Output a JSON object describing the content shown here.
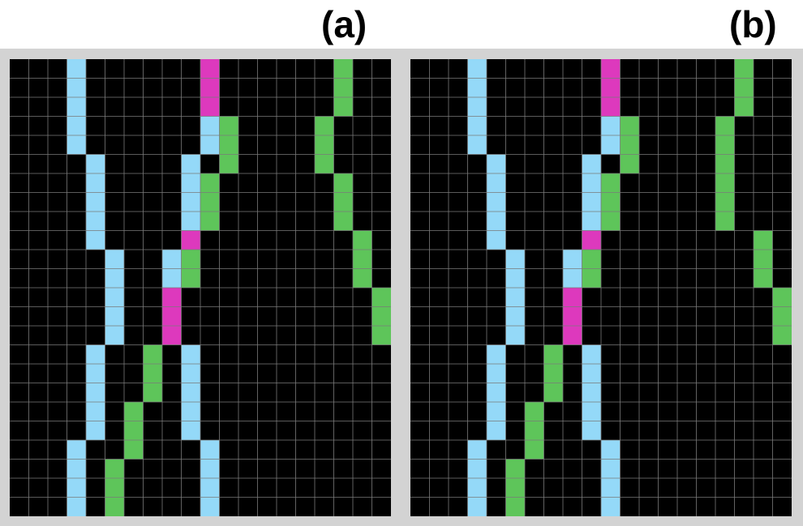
{
  "panels": [
    {
      "id": "a",
      "label": "(a)",
      "rows": 24,
      "cols": 20,
      "cells": [
        {
          "row": 0,
          "col": 3,
          "color": "blue"
        },
        {
          "row": 1,
          "col": 3,
          "color": "blue"
        },
        {
          "row": 2,
          "col": 3,
          "color": "blue"
        },
        {
          "row": 3,
          "col": 3,
          "color": "blue"
        },
        {
          "row": 4,
          "col": 3,
          "color": "blue"
        },
        {
          "row": 5,
          "col": 4,
          "color": "blue"
        },
        {
          "row": 6,
          "col": 4,
          "color": "blue"
        },
        {
          "row": 7,
          "col": 4,
          "color": "blue"
        },
        {
          "row": 8,
          "col": 4,
          "color": "blue"
        },
        {
          "row": 9,
          "col": 4,
          "color": "blue"
        },
        {
          "row": 10,
          "col": 5,
          "color": "blue"
        },
        {
          "row": 11,
          "col": 5,
          "color": "blue"
        },
        {
          "row": 12,
          "col": 5,
          "color": "blue"
        },
        {
          "row": 13,
          "col": 5,
          "color": "blue"
        },
        {
          "row": 14,
          "col": 5,
          "color": "blue"
        },
        {
          "row": 15,
          "col": 4,
          "color": "blue"
        },
        {
          "row": 16,
          "col": 4,
          "color": "blue"
        },
        {
          "row": 17,
          "col": 4,
          "color": "blue"
        },
        {
          "row": 18,
          "col": 4,
          "color": "blue"
        },
        {
          "row": 19,
          "col": 4,
          "color": "blue"
        },
        {
          "row": 20,
          "col": 3,
          "color": "blue"
        },
        {
          "row": 21,
          "col": 3,
          "color": "blue"
        },
        {
          "row": 22,
          "col": 3,
          "color": "blue"
        },
        {
          "row": 23,
          "col": 3,
          "color": "blue"
        },
        {
          "row": 0,
          "col": 10,
          "color": "magenta"
        },
        {
          "row": 1,
          "col": 10,
          "color": "magenta"
        },
        {
          "row": 2,
          "col": 10,
          "color": "magenta"
        },
        {
          "row": 3,
          "col": 10,
          "color": "blue"
        },
        {
          "row": 4,
          "col": 10,
          "color": "blue"
        },
        {
          "row": 5,
          "col": 9,
          "color": "blue"
        },
        {
          "row": 6,
          "col": 9,
          "color": "blue"
        },
        {
          "row": 7,
          "col": 9,
          "color": "blue"
        },
        {
          "row": 8,
          "col": 9,
          "color": "blue"
        },
        {
          "row": 9,
          "col": 9,
          "color": "magenta"
        },
        {
          "row": 10,
          "col": 8,
          "color": "blue"
        },
        {
          "row": 11,
          "col": 8,
          "color": "blue"
        },
        {
          "row": 12,
          "col": 8,
          "color": "magenta"
        },
        {
          "row": 13,
          "col": 8,
          "color": "magenta"
        },
        {
          "row": 14,
          "col": 8,
          "color": "magenta"
        },
        {
          "row": 15,
          "col": 9,
          "color": "blue"
        },
        {
          "row": 16,
          "col": 9,
          "color": "blue"
        },
        {
          "row": 17,
          "col": 9,
          "color": "blue"
        },
        {
          "row": 18,
          "col": 9,
          "color": "blue"
        },
        {
          "row": 19,
          "col": 9,
          "color": "blue"
        },
        {
          "row": 20,
          "col": 10,
          "color": "blue"
        },
        {
          "row": 21,
          "col": 10,
          "color": "blue"
        },
        {
          "row": 22,
          "col": 10,
          "color": "blue"
        },
        {
          "row": 23,
          "col": 10,
          "color": "blue"
        },
        {
          "row": 3,
          "col": 11,
          "color": "green"
        },
        {
          "row": 4,
          "col": 11,
          "color": "green"
        },
        {
          "row": 5,
          "col": 11,
          "color": "green"
        },
        {
          "row": 6,
          "col": 10,
          "color": "green"
        },
        {
          "row": 7,
          "col": 10,
          "color": "green"
        },
        {
          "row": 8,
          "col": 10,
          "color": "green"
        },
        {
          "row": 10,
          "col": 9,
          "color": "green"
        },
        {
          "row": 11,
          "col": 9,
          "color": "green"
        },
        {
          "row": 15,
          "col": 7,
          "color": "green"
        },
        {
          "row": 16,
          "col": 7,
          "color": "green"
        },
        {
          "row": 17,
          "col": 7,
          "color": "green"
        },
        {
          "row": 18,
          "col": 6,
          "color": "green"
        },
        {
          "row": 19,
          "col": 6,
          "color": "green"
        },
        {
          "row": 20,
          "col": 6,
          "color": "green"
        },
        {
          "row": 21,
          "col": 5,
          "color": "green"
        },
        {
          "row": 22,
          "col": 5,
          "color": "green"
        },
        {
          "row": 23,
          "col": 5,
          "color": "green"
        },
        {
          "row": 0,
          "col": 17,
          "color": "green"
        },
        {
          "row": 1,
          "col": 17,
          "color": "green"
        },
        {
          "row": 2,
          "col": 17,
          "color": "green"
        },
        {
          "row": 3,
          "col": 16,
          "color": "green"
        },
        {
          "row": 4,
          "col": 16,
          "color": "green"
        },
        {
          "row": 5,
          "col": 16,
          "color": "green"
        },
        {
          "row": 6,
          "col": 17,
          "color": "green"
        },
        {
          "row": 7,
          "col": 17,
          "color": "green"
        },
        {
          "row": 8,
          "col": 17,
          "color": "green"
        },
        {
          "row": 9,
          "col": 18,
          "color": "green"
        },
        {
          "row": 10,
          "col": 18,
          "color": "green"
        },
        {
          "row": 11,
          "col": 18,
          "color": "green"
        },
        {
          "row": 12,
          "col": 19,
          "color": "green"
        },
        {
          "row": 13,
          "col": 19,
          "color": "green"
        },
        {
          "row": 14,
          "col": 19,
          "color": "green"
        }
      ]
    },
    {
      "id": "b",
      "label": "(b)",
      "rows": 24,
      "cols": 20,
      "cells": [
        {
          "row": 0,
          "col": 3,
          "color": "blue"
        },
        {
          "row": 1,
          "col": 3,
          "color": "blue"
        },
        {
          "row": 2,
          "col": 3,
          "color": "blue"
        },
        {
          "row": 3,
          "col": 3,
          "color": "blue"
        },
        {
          "row": 4,
          "col": 3,
          "color": "blue"
        },
        {
          "row": 5,
          "col": 4,
          "color": "blue"
        },
        {
          "row": 6,
          "col": 4,
          "color": "blue"
        },
        {
          "row": 7,
          "col": 4,
          "color": "blue"
        },
        {
          "row": 8,
          "col": 4,
          "color": "blue"
        },
        {
          "row": 9,
          "col": 4,
          "color": "blue"
        },
        {
          "row": 10,
          "col": 5,
          "color": "blue"
        },
        {
          "row": 11,
          "col": 5,
          "color": "blue"
        },
        {
          "row": 12,
          "col": 5,
          "color": "blue"
        },
        {
          "row": 13,
          "col": 5,
          "color": "blue"
        },
        {
          "row": 14,
          "col": 5,
          "color": "blue"
        },
        {
          "row": 15,
          "col": 4,
          "color": "blue"
        },
        {
          "row": 16,
          "col": 4,
          "color": "blue"
        },
        {
          "row": 17,
          "col": 4,
          "color": "blue"
        },
        {
          "row": 18,
          "col": 4,
          "color": "blue"
        },
        {
          "row": 19,
          "col": 4,
          "color": "blue"
        },
        {
          "row": 20,
          "col": 3,
          "color": "blue"
        },
        {
          "row": 21,
          "col": 3,
          "color": "blue"
        },
        {
          "row": 22,
          "col": 3,
          "color": "blue"
        },
        {
          "row": 23,
          "col": 3,
          "color": "blue"
        },
        {
          "row": 0,
          "col": 10,
          "color": "magenta"
        },
        {
          "row": 1,
          "col": 10,
          "color": "magenta"
        },
        {
          "row": 2,
          "col": 10,
          "color": "magenta"
        },
        {
          "row": 3,
          "col": 10,
          "color": "blue"
        },
        {
          "row": 4,
          "col": 10,
          "color": "blue"
        },
        {
          "row": 5,
          "col": 9,
          "color": "blue"
        },
        {
          "row": 6,
          "col": 9,
          "color": "blue"
        },
        {
          "row": 7,
          "col": 9,
          "color": "blue"
        },
        {
          "row": 8,
          "col": 9,
          "color": "blue"
        },
        {
          "row": 9,
          "col": 9,
          "color": "magenta"
        },
        {
          "row": 10,
          "col": 8,
          "color": "blue"
        },
        {
          "row": 11,
          "col": 8,
          "color": "blue"
        },
        {
          "row": 12,
          "col": 8,
          "color": "magenta"
        },
        {
          "row": 13,
          "col": 8,
          "color": "magenta"
        },
        {
          "row": 14,
          "col": 8,
          "color": "magenta"
        },
        {
          "row": 15,
          "col": 9,
          "color": "blue"
        },
        {
          "row": 16,
          "col": 9,
          "color": "blue"
        },
        {
          "row": 17,
          "col": 9,
          "color": "blue"
        },
        {
          "row": 18,
          "col": 9,
          "color": "blue"
        },
        {
          "row": 19,
          "col": 9,
          "color": "blue"
        },
        {
          "row": 20,
          "col": 10,
          "color": "blue"
        },
        {
          "row": 21,
          "col": 10,
          "color": "blue"
        },
        {
          "row": 22,
          "col": 10,
          "color": "blue"
        },
        {
          "row": 23,
          "col": 10,
          "color": "blue"
        },
        {
          "row": 3,
          "col": 11,
          "color": "green"
        },
        {
          "row": 4,
          "col": 11,
          "color": "green"
        },
        {
          "row": 5,
          "col": 11,
          "color": "green"
        },
        {
          "row": 6,
          "col": 10,
          "color": "green"
        },
        {
          "row": 7,
          "col": 10,
          "color": "green"
        },
        {
          "row": 8,
          "col": 10,
          "color": "green"
        },
        {
          "row": 10,
          "col": 9,
          "color": "green"
        },
        {
          "row": 11,
          "col": 9,
          "color": "green"
        },
        {
          "row": 15,
          "col": 7,
          "color": "green"
        },
        {
          "row": 16,
          "col": 7,
          "color": "green"
        },
        {
          "row": 17,
          "col": 7,
          "color": "green"
        },
        {
          "row": 18,
          "col": 6,
          "color": "green"
        },
        {
          "row": 19,
          "col": 6,
          "color": "green"
        },
        {
          "row": 20,
          "col": 6,
          "color": "green"
        },
        {
          "row": 21,
          "col": 5,
          "color": "green"
        },
        {
          "row": 22,
          "col": 5,
          "color": "green"
        },
        {
          "row": 23,
          "col": 5,
          "color": "green"
        },
        {
          "row": 0,
          "col": 17,
          "color": "green"
        },
        {
          "row": 1,
          "col": 17,
          "color": "green"
        },
        {
          "row": 2,
          "col": 17,
          "color": "green"
        },
        {
          "row": 3,
          "col": 16,
          "color": "green"
        },
        {
          "row": 4,
          "col": 16,
          "color": "green"
        },
        {
          "row": 5,
          "col": 16,
          "color": "green"
        },
        {
          "row": 6,
          "col": 16,
          "color": "green"
        },
        {
          "row": 7,
          "col": 16,
          "color": "green"
        },
        {
          "row": 8,
          "col": 16,
          "color": "green"
        },
        {
          "row": 9,
          "col": 18,
          "color": "green"
        },
        {
          "row": 10,
          "col": 18,
          "color": "green"
        },
        {
          "row": 11,
          "col": 18,
          "color": "green"
        },
        {
          "row": 12,
          "col": 19,
          "color": "green"
        },
        {
          "row": 13,
          "col": 19,
          "color": "green"
        },
        {
          "row": 14,
          "col": 19,
          "color": "green"
        }
      ]
    }
  ],
  "palette": {
    "background": "#000000",
    "gridline": "#7a7a7a",
    "blue": "#94d9f8",
    "magenta": "#dd39bd",
    "green": "#5ec55a",
    "frame": "#d3d3d3"
  }
}
